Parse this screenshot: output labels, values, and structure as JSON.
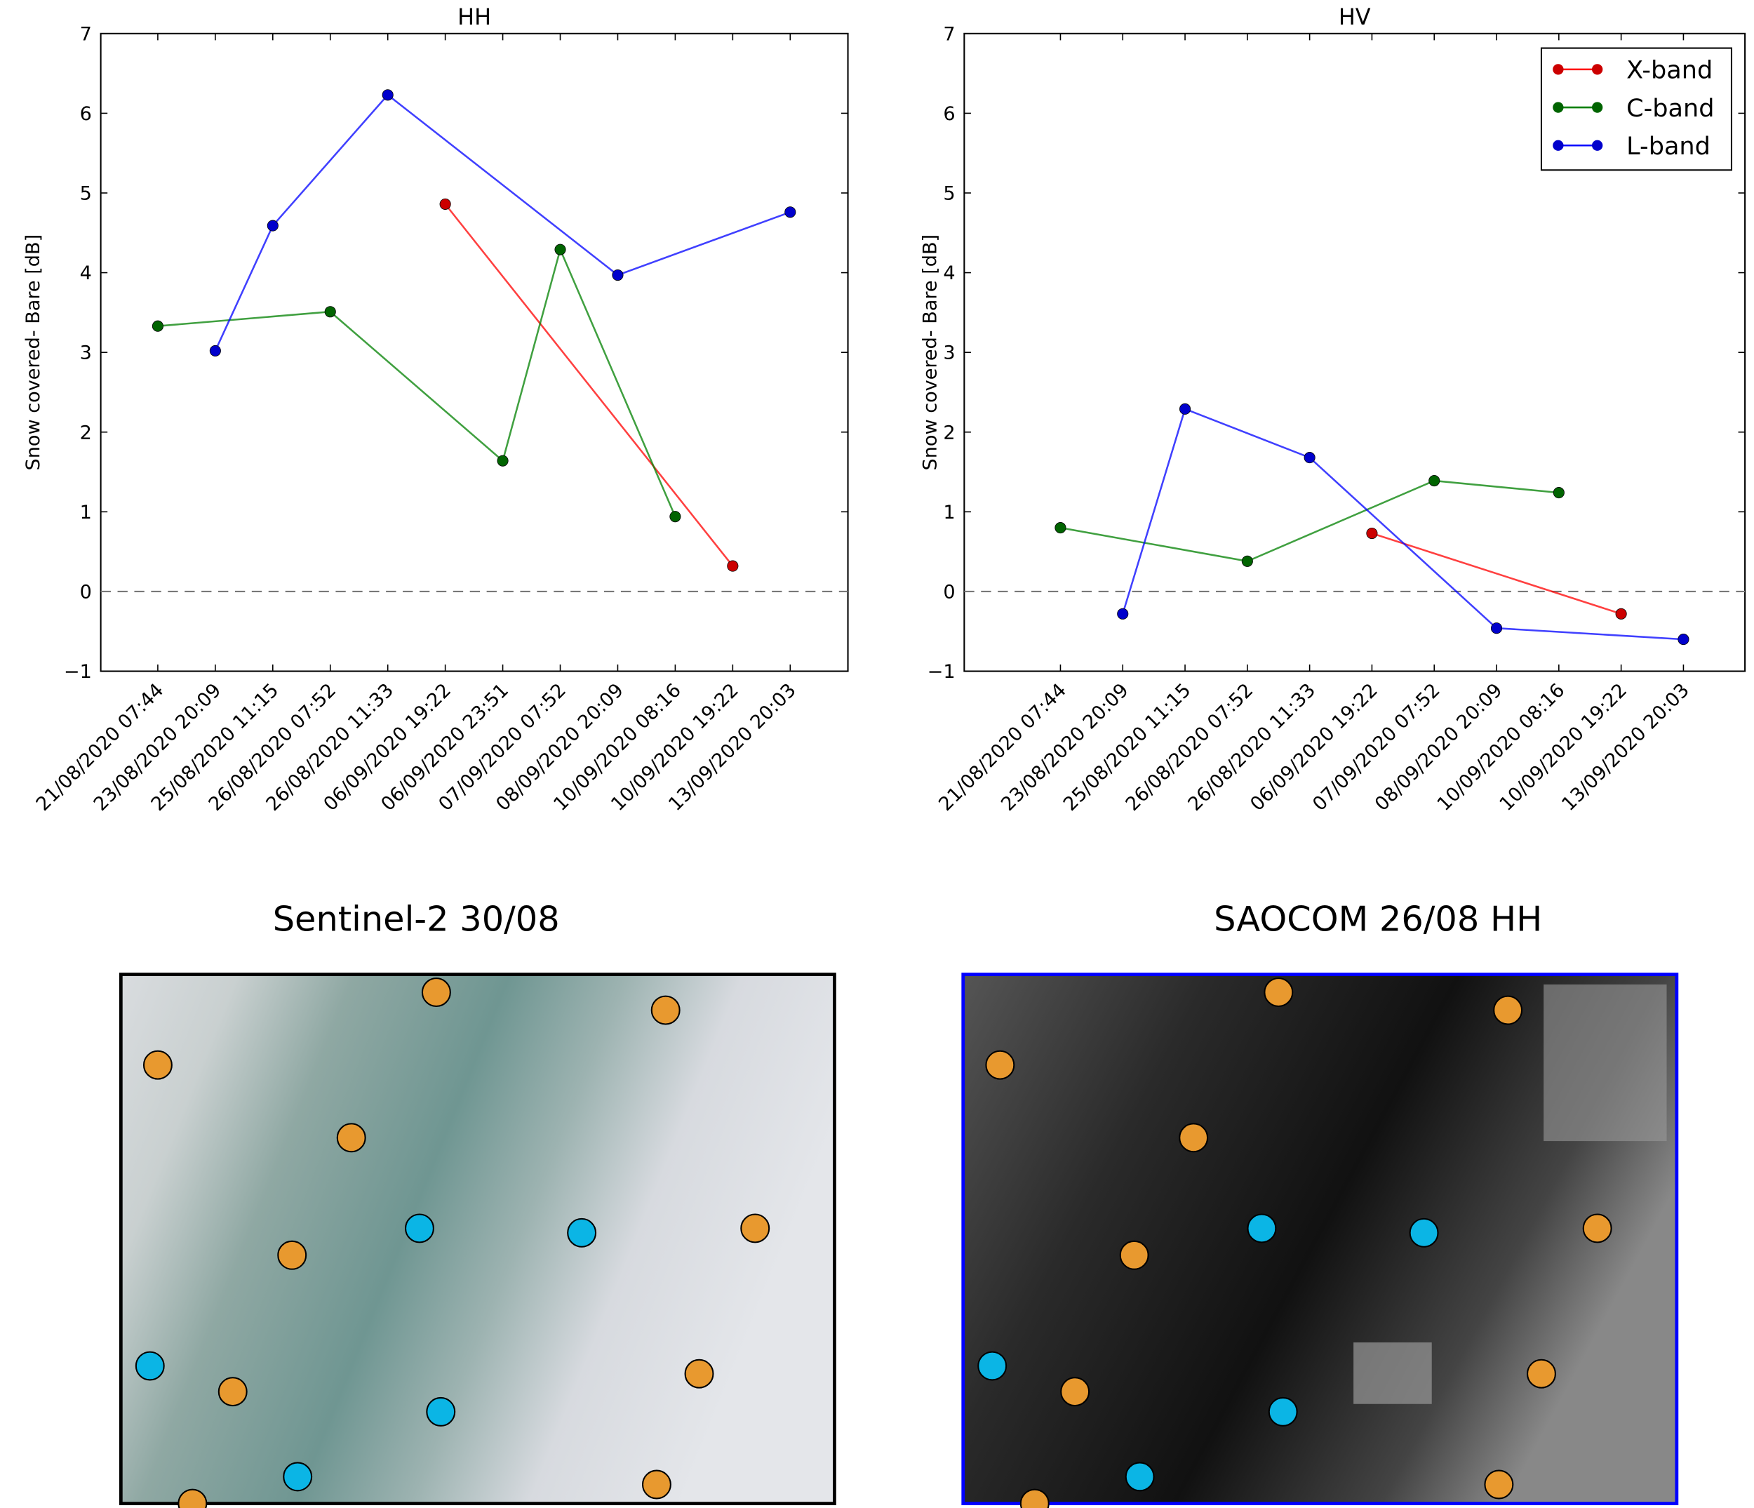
{
  "chart_data": [
    {
      "type": "line",
      "title": "HH",
      "ylabel": "Snow covered- Bare [dB]",
      "xlabel": "",
      "ylim": [
        -1,
        7
      ],
      "yticks": [
        "−1",
        "0",
        "1",
        "2",
        "3",
        "4",
        "5",
        "6",
        "7"
      ],
      "categories": [
        "21/08/2020 07:44",
        "23/08/2020 20:09",
        "25/08/2020 11:15",
        "26/08/2020 07:52",
        "26/08/2020 11:33",
        "06/09/2020 19:22",
        "06/09/2020 23:51",
        "07/09/2020 07:52",
        "08/09/2020 20:09",
        "10/09/2020 08:16",
        "10/09/2020 19:22",
        "13/09/2020 20:03"
      ],
      "reference_line": 0,
      "series": [
        {
          "name": "X-band",
          "color": "#ff0000",
          "marker": "#cc0000",
          "points": [
            [
              5,
              4.86
            ],
            [
              10,
              0.32
            ]
          ]
        },
        {
          "name": "C-band",
          "color": "#008000",
          "marker": "#006400",
          "points": [
            [
              0,
              3.33
            ],
            [
              3,
              3.51
            ],
            [
              6,
              1.64
            ],
            [
              7,
              4.29
            ],
            [
              9,
              0.94
            ]
          ]
        },
        {
          "name": "L-band",
          "color": "#0000ff",
          "marker": "#0000cc",
          "points": [
            [
              1,
              3.02
            ],
            [
              2,
              4.59
            ],
            [
              4,
              6.23
            ],
            [
              8,
              3.97
            ],
            [
              11,
              4.76
            ]
          ]
        }
      ]
    },
    {
      "type": "line",
      "title": "HV",
      "ylabel": "Snow covered- Bare [dB]",
      "xlabel": "",
      "ylim": [
        -1,
        7
      ],
      "yticks": [
        "−1",
        "0",
        "1",
        "2",
        "3",
        "4",
        "5",
        "6",
        "7"
      ],
      "categories": [
        "21/08/2020 07:44",
        "23/08/2020 20:09",
        "25/08/2020 11:15",
        "26/08/2020 07:52",
        "26/08/2020 11:33",
        "06/09/2020 19:22",
        "07/09/2020 07:52",
        "08/09/2020 20:09",
        "10/09/2020 08:16",
        "10/09/2020 19:22",
        "13/09/2020 20:03"
      ],
      "reference_line": 0,
      "legend": "top-right",
      "series": [
        {
          "name": "X-band",
          "color": "#ff0000",
          "marker": "#cc0000",
          "points": [
            [
              5,
              0.73
            ],
            [
              9,
              -0.28
            ]
          ]
        },
        {
          "name": "C-band",
          "color": "#008000",
          "marker": "#006400",
          "points": [
            [
              0,
              0.8
            ],
            [
              3,
              0.38
            ],
            [
              6,
              1.39
            ],
            [
              8,
              1.24
            ]
          ]
        },
        {
          "name": "L-band",
          "color": "#0000ff",
          "marker": "#0000cc",
          "points": [
            [
              1,
              -0.28
            ],
            [
              2,
              2.29
            ],
            [
              4,
              1.68
            ],
            [
              7,
              -0.46
            ],
            [
              10,
              -0.6
            ]
          ]
        }
      ]
    }
  ],
  "panels": {
    "left_title": "Sentinel-2 30/08",
    "right_title": "SAOCOM 26/08  HH",
    "orange": "#e8992f",
    "blue": "#0bb5e5"
  }
}
